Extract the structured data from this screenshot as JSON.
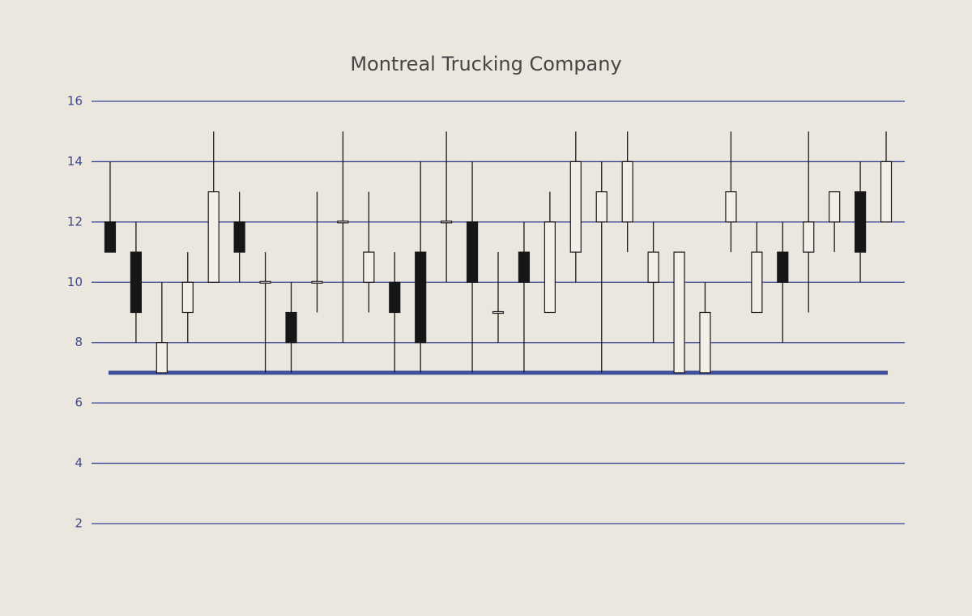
{
  "chart_data": {
    "type": "candlestick",
    "title": "Montreal Trucking Company",
    "open": [
      12,
      11,
      7,
      9,
      10,
      12,
      10,
      9,
      10,
      12,
      10,
      10,
      11,
      12,
      12,
      9,
      11,
      9,
      11,
      12,
      12,
      10,
      7,
      7,
      12,
      9,
      11,
      11,
      12,
      13,
      12
    ],
    "high": [
      14,
      12,
      10,
      11,
      15,
      13,
      11,
      10,
      13,
      15,
      13,
      11,
      14,
      15,
      14,
      11,
      12,
      13,
      15,
      14,
      15,
      12,
      11,
      10,
      15,
      12,
      12,
      15,
      13,
      14,
      15
    ],
    "low": [
      11,
      8,
      7,
      8,
      10,
      10,
      7,
      7,
      9,
      8,
      9,
      7,
      7,
      10,
      7,
      8,
      7,
      9,
      10,
      7,
      11,
      8,
      7,
      7,
      11,
      9,
      8,
      9,
      11,
      10,
      12
    ],
    "close": [
      11,
      9,
      8,
      10,
      13,
      11,
      10,
      8,
      10,
      12,
      11,
      9,
      8,
      12,
      10,
      9,
      10,
      12,
      14,
      13,
      14,
      11,
      11,
      9,
      13,
      11,
      10,
      12,
      13,
      11,
      14
    ],
    "up_color": "#f2efe8",
    "down_color": "#161616",
    "reference_line": {
      "value": 7,
      "color": "#3d4f9a"
    },
    "ylim": [
      2,
      16
    ],
    "yticks": [
      2,
      4,
      6,
      8,
      10,
      12,
      14,
      16
    ],
    "grid": true,
    "grid_color": "#3a4494"
  }
}
